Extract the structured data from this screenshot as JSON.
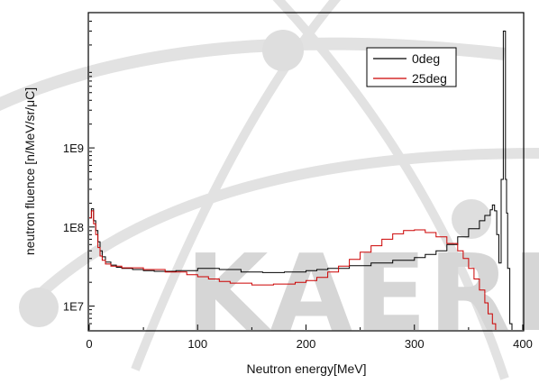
{
  "watermark": {
    "text": "KAERI",
    "color": "#d6d6d6",
    "orbit_color": "#e2e2e2"
  },
  "chart_data": {
    "type": "line",
    "title": "",
    "xlabel": "Neutron energy[MeV]",
    "ylabel": "neutron fluence [n/MeV/sr/μC]",
    "xlim": [
      0,
      400
    ],
    "ylim": [
      5000000,
      50000000000
    ],
    "y_scale": "log",
    "x_ticks": [
      0,
      100,
      200,
      300,
      400
    ],
    "x_tick_labels": [
      "0",
      "100",
      "200",
      "300",
      "400"
    ],
    "y_ticks": [
      10000000,
      100000000,
      1000000000
    ],
    "y_tick_labels": [
      "1E7",
      "1E8",
      "1E9"
    ],
    "grid": false,
    "legend_position": "top-right",
    "series": [
      {
        "name": "0deg",
        "color": "#000000",
        "points": [
          [
            0,
            130000000.0
          ],
          [
            2,
            170000000.0
          ],
          [
            4,
            120000000.0
          ],
          [
            6,
            90000000.0
          ],
          [
            8,
            65000000.0
          ],
          [
            10,
            50000000.0
          ],
          [
            12,
            42000000.0
          ],
          [
            15,
            36000000.0
          ],
          [
            20,
            33000000.0
          ],
          [
            25,
            31000000.0
          ],
          [
            30,
            30000000.0
          ],
          [
            40,
            29000000.0
          ],
          [
            50,
            28000000.0
          ],
          [
            60,
            27500000.0
          ],
          [
            80,
            28000000.0
          ],
          [
            100,
            30000000.0
          ],
          [
            120,
            29000000.0
          ],
          [
            140,
            27000000.0
          ],
          [
            160,
            26500000.0
          ],
          [
            180,
            27000000.0
          ],
          [
            200,
            28000000.0
          ],
          [
            210,
            29000000.0
          ],
          [
            220,
            30000000.0
          ],
          [
            240,
            32500000.0
          ],
          [
            260,
            35000000.0
          ],
          [
            280,
            38000000.0
          ],
          [
            300,
            41000000.0
          ],
          [
            310,
            45000000.0
          ],
          [
            320,
            50000000.0
          ],
          [
            330,
            60000000.0
          ],
          [
            340,
            75000000.0
          ],
          [
            350,
            95000000.0
          ],
          [
            360,
            120000000.0
          ],
          [
            365,
            140000000.0
          ],
          [
            370,
            165000000.0
          ],
          [
            372,
            190000000.0
          ],
          [
            374,
            160000000.0
          ],
          [
            376,
            80000000.0
          ],
          [
            378,
            35000000.0
          ],
          [
            380,
            400000000.0
          ],
          [
            382,
            30000000000.0
          ],
          [
            384,
            400000000.0
          ],
          [
            385,
            150000000.0
          ],
          [
            386,
            30000000.0
          ],
          [
            388,
            6000000.0
          ],
          [
            390,
            5000000.0
          ]
        ]
      },
      {
        "name": "25deg",
        "color": "#cc0000",
        "points": [
          [
            0,
            130000000.0
          ],
          [
            2,
            160000000.0
          ],
          [
            4,
            110000000.0
          ],
          [
            6,
            80000000.0
          ],
          [
            8,
            55000000.0
          ],
          [
            10,
            43000000.0
          ],
          [
            12,
            38000000.0
          ],
          [
            15,
            34000000.0
          ],
          [
            20,
            32000000.0
          ],
          [
            30,
            30500000.0
          ],
          [
            50,
            29000000.0
          ],
          [
            70,
            27000000.0
          ],
          [
            90,
            25000000.0
          ],
          [
            100,
            23500000.0
          ],
          [
            110,
            22000000.0
          ],
          [
            120,
            20500000.0
          ],
          [
            130,
            19500000.0
          ],
          [
            150,
            18500000.0
          ],
          [
            170,
            19000000.0
          ],
          [
            190,
            20000000.0
          ],
          [
            200,
            21000000.0
          ],
          [
            210,
            23000000.0
          ],
          [
            220,
            27000000.0
          ],
          [
            230,
            32000000.0
          ],
          [
            240,
            39000000.0
          ],
          [
            250,
            48000000.0
          ],
          [
            260,
            58000000.0
          ],
          [
            270,
            70000000.0
          ],
          [
            280,
            82000000.0
          ],
          [
            290,
            90000000.0
          ],
          [
            300,
            92000000.0
          ],
          [
            310,
            85000000.0
          ],
          [
            320,
            75000000.0
          ],
          [
            330,
            62000000.0
          ],
          [
            340,
            50000000.0
          ],
          [
            345,
            40000000.0
          ],
          [
            350,
            30000000.0
          ],
          [
            355,
            22000000.0
          ],
          [
            360,
            16000000.0
          ],
          [
            365,
            11000000.0
          ],
          [
            368,
            8000000.0
          ],
          [
            372,
            6000000.0
          ],
          [
            375,
            5000000.0
          ]
        ]
      }
    ]
  }
}
